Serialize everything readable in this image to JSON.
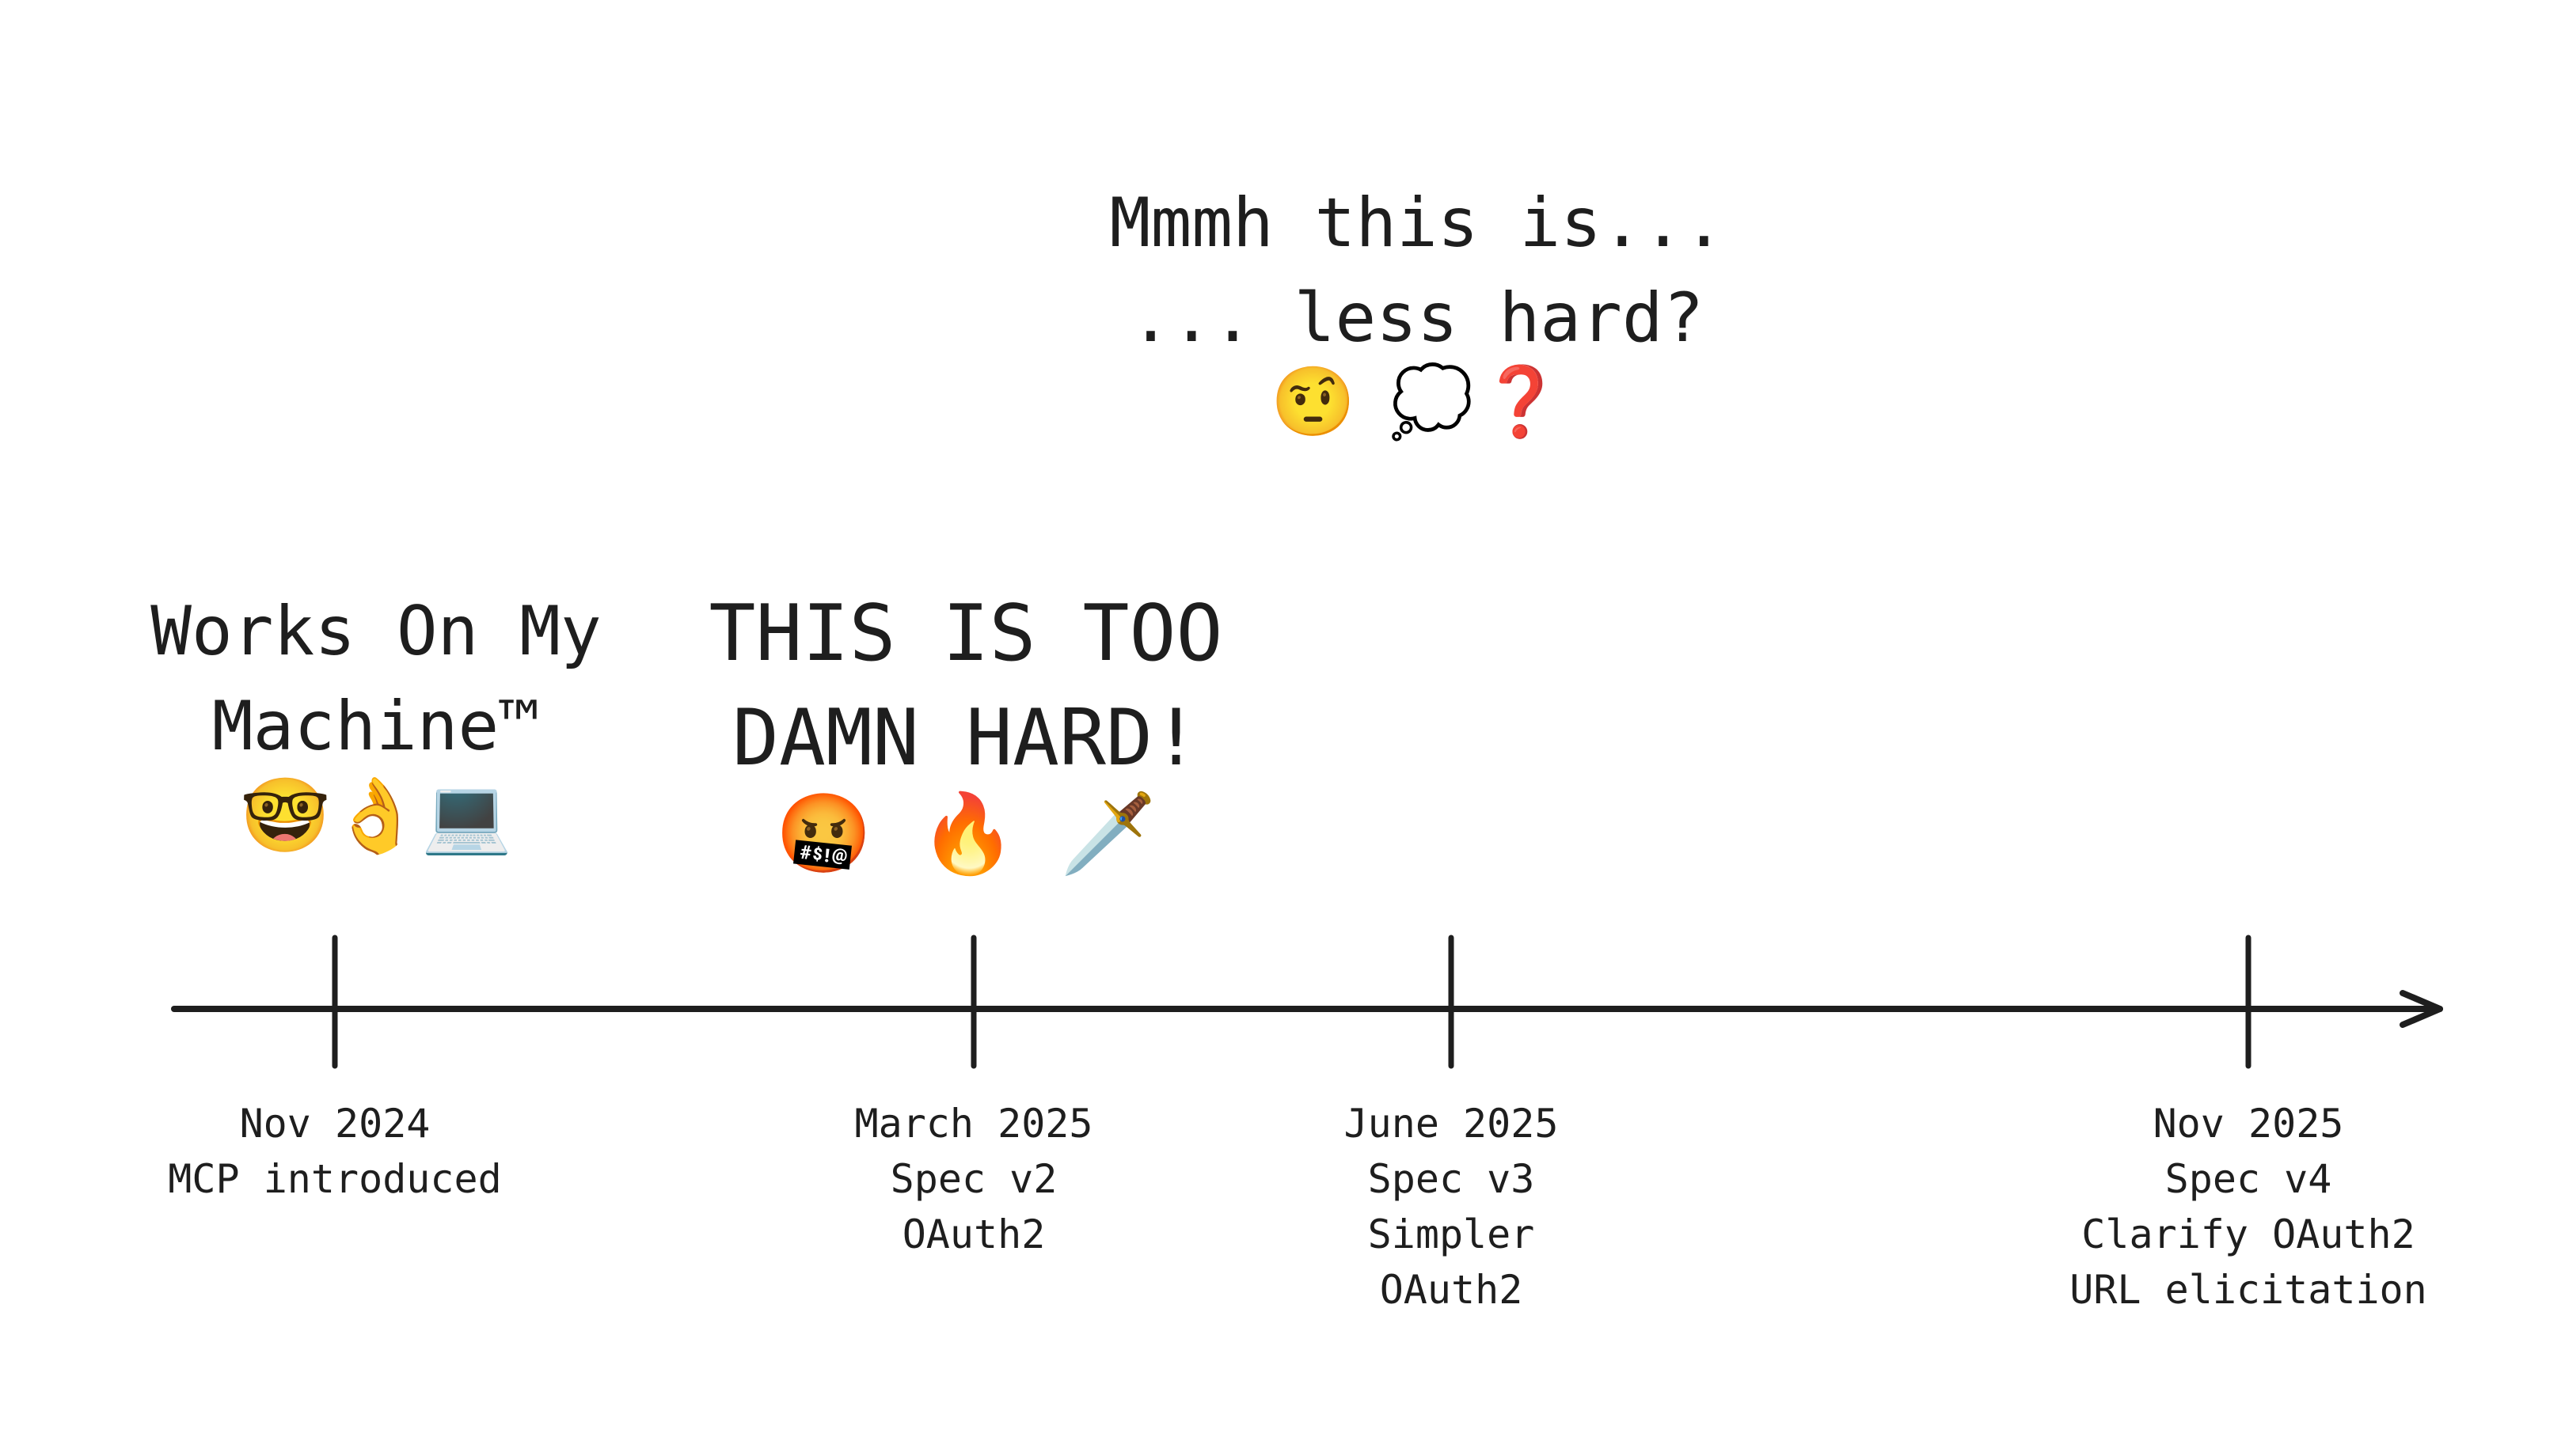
{
  "captions": {
    "top": {
      "lines": [
        "Mmmh this is...",
        "... less hard?"
      ],
      "emojis": [
        "🤨",
        "💭",
        "❓"
      ]
    },
    "left": {
      "lines": [
        "Works On My",
        "Machine™"
      ],
      "emojis": [
        "🤓",
        "👌",
        "💻"
      ]
    },
    "middle": {
      "lines": [
        "THIS IS TOO",
        "DAMN HARD!"
      ],
      "emojis": [
        "🤬",
        "🔥",
        "🗡️"
      ]
    }
  },
  "milestones": [
    {
      "lines": [
        "Nov 2024",
        "MCP introduced"
      ]
    },
    {
      "lines": [
        "March 2025",
        "Spec v2",
        "OAuth2"
      ]
    },
    {
      "lines": [
        "June 2025",
        "Spec v3",
        "Simpler",
        "OAuth2"
      ]
    },
    {
      "lines": [
        "Nov 2025",
        "Spec v4",
        "Clarify OAuth2",
        "URL elicitation"
      ]
    }
  ],
  "colors": {
    "ink": "#1e1e1e",
    "question": "#e00000"
  },
  "icons": {
    "timeline": "arrow-right-icon"
  }
}
